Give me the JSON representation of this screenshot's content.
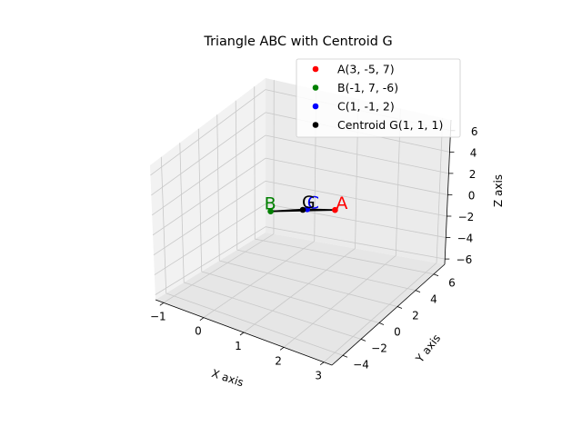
{
  "chart_data": {
    "type": "scatter",
    "projection": "3d",
    "title": "Triangle ABC with Centroid G",
    "xlabel": "X axis",
    "ylabel": "Y axis",
    "zlabel": "Z axis",
    "xlim": [
      -1,
      3
    ],
    "ylim": [
      -5,
      7
    ],
    "zlim": [
      -6,
      7
    ],
    "x_ticks": [
      "−1",
      "0",
      "1",
      "2",
      "3"
    ],
    "y_ticks": [
      "−4",
      "−2",
      "0",
      "2",
      "4",
      "6"
    ],
    "z_ticks": [
      "−6",
      "−4",
      "−2",
      "0",
      "2",
      "4",
      "6"
    ],
    "grid": true,
    "legend_position": "top-right",
    "points": [
      {
        "name": "A(3, -5, 7)",
        "label": "A",
        "x": 3,
        "y": -5,
        "z": 7,
        "color": "#ff0000"
      },
      {
        "name": "B(-1, 7, -6)",
        "label": "B",
        "x": -1,
        "y": 7,
        "z": -6,
        "color": "#008000"
      },
      {
        "name": "C(1, -1, 2)",
        "label": "C",
        "x": 1,
        "y": -1,
        "z": 2,
        "color": "#0000ff"
      },
      {
        "name": "Centroid G(1, 1, 1)",
        "label": "G",
        "x": 1,
        "y": 1,
        "z": 1,
        "color": "#000000"
      }
    ],
    "line_color": "#000000"
  }
}
